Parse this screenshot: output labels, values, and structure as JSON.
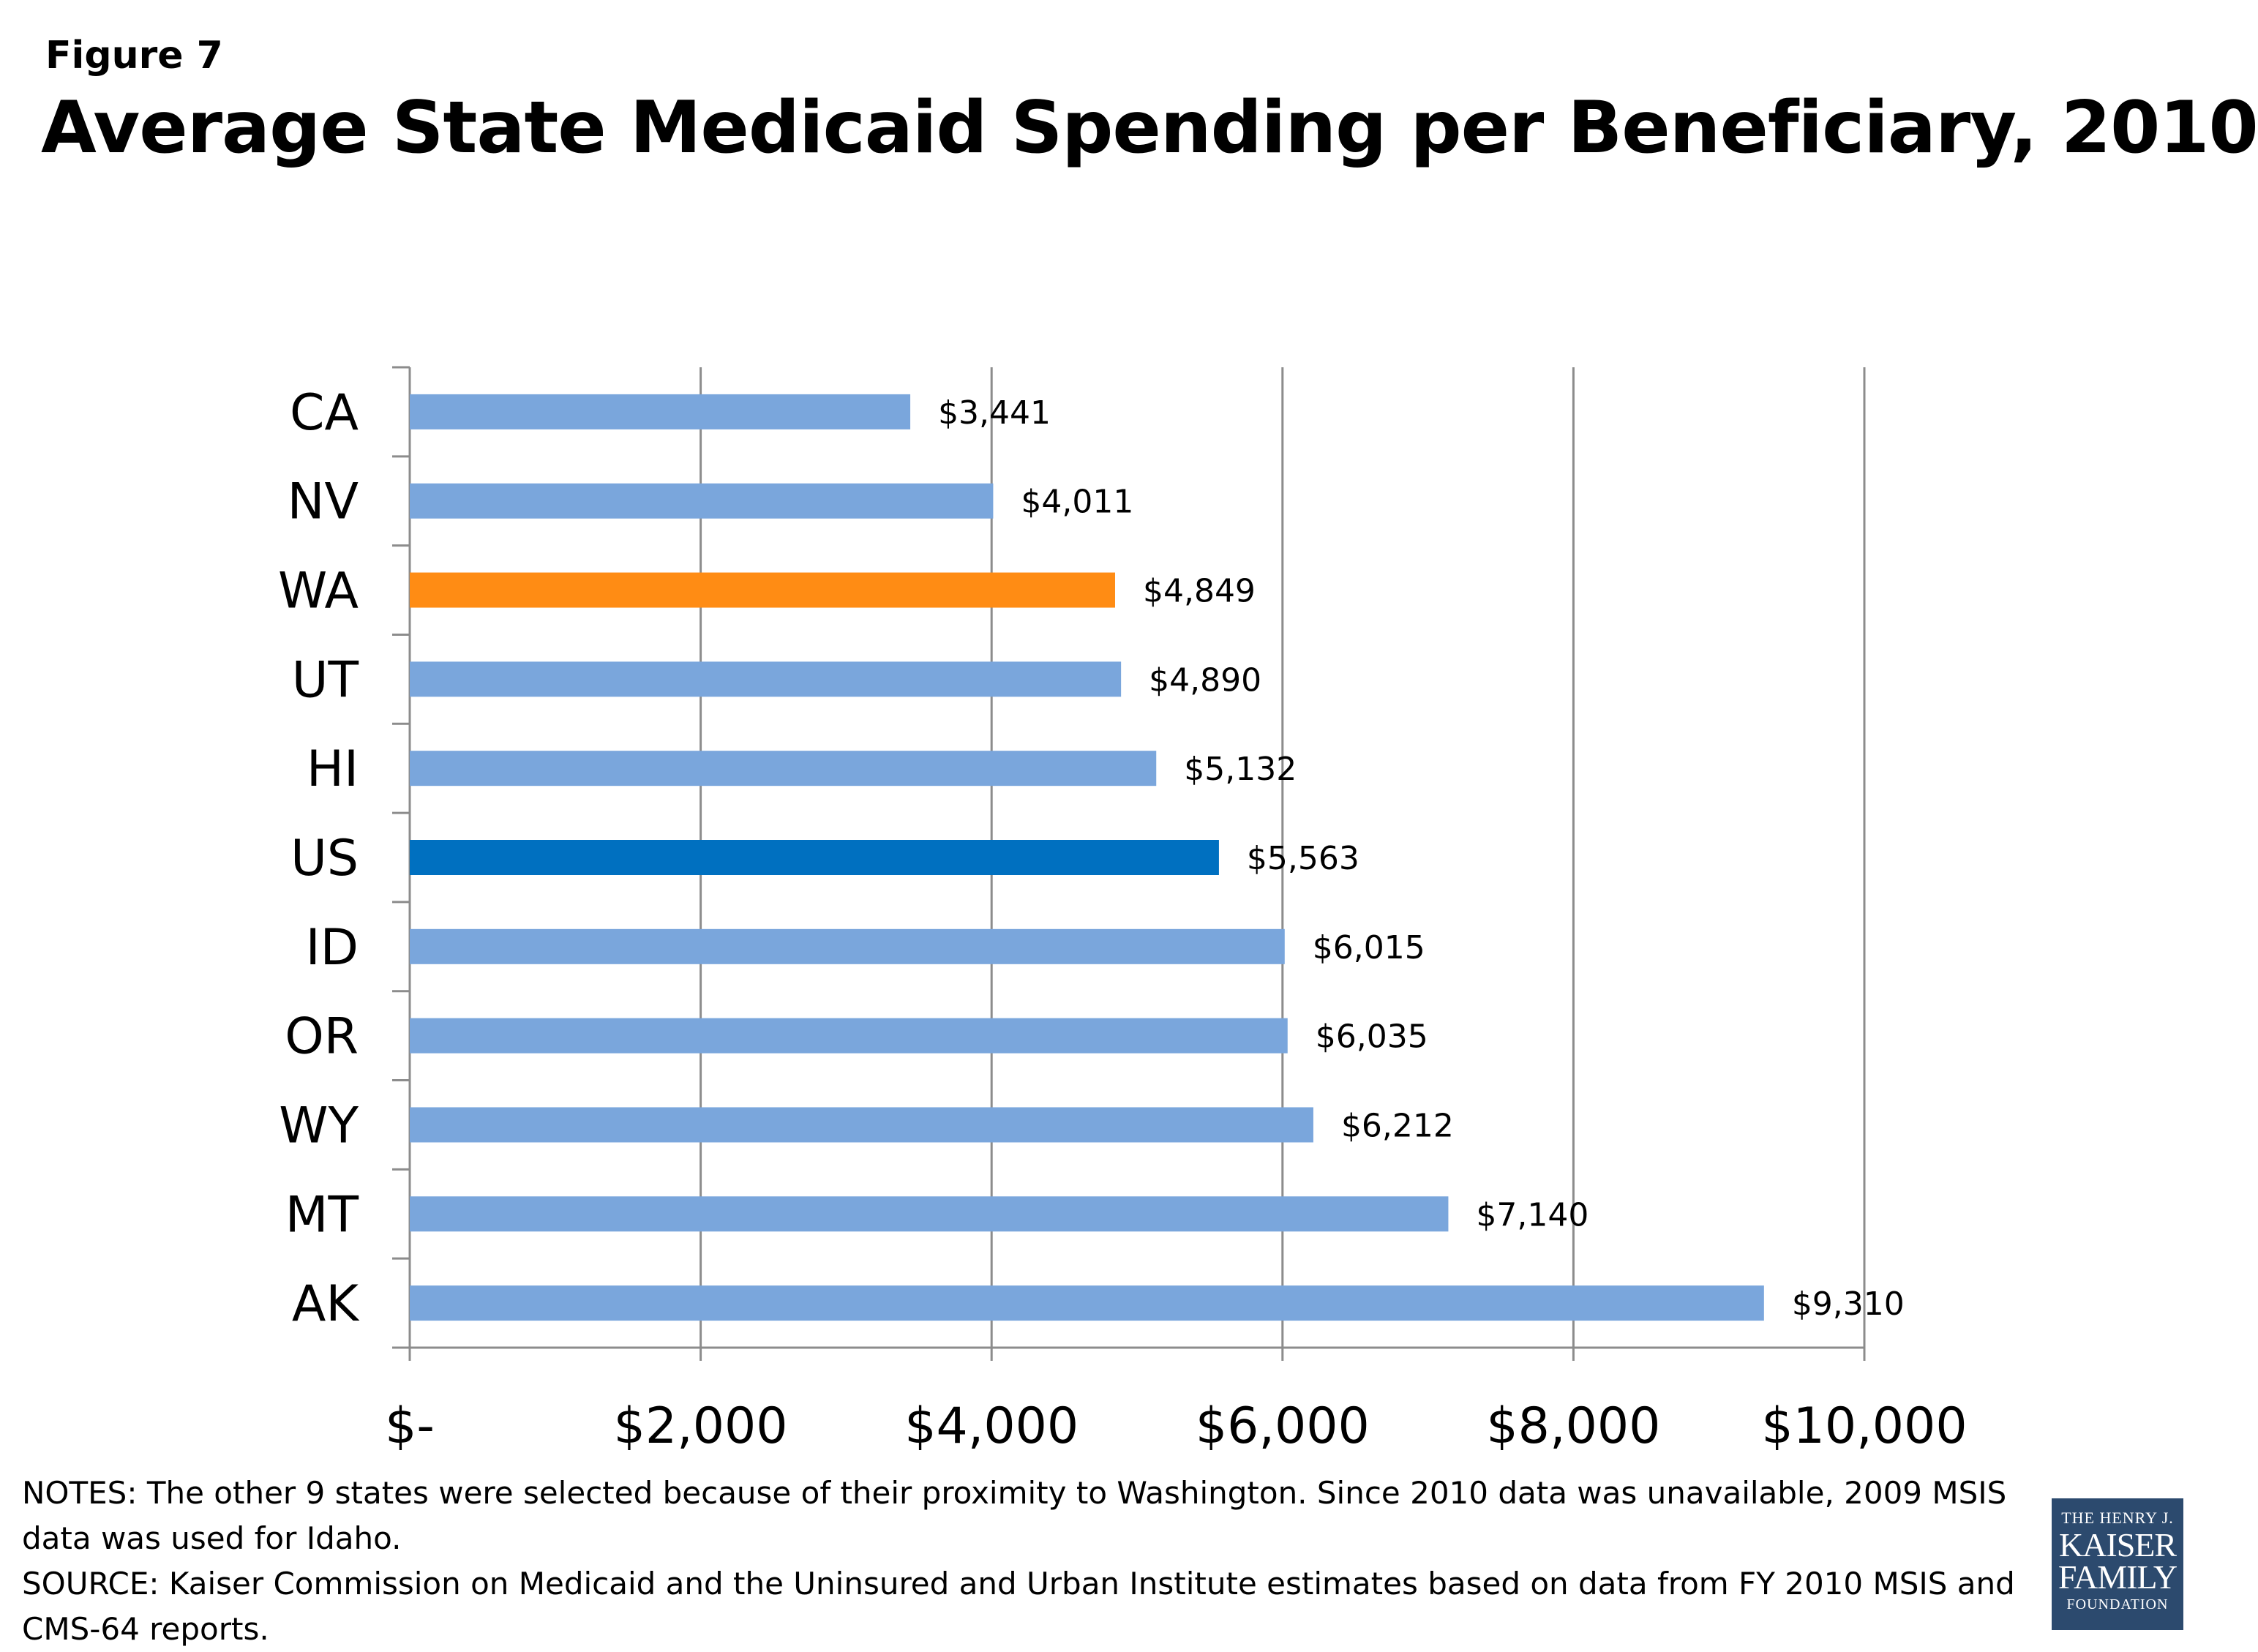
{
  "figure_label": "Figure 7",
  "title": "Average State Medicaid Spending per Beneficiary, 2010",
  "notes": "NOTES: The other 9 states were selected because of their proximity to Washington. Since 2010 data was unavailable, 2009 MSIS data was used for Idaho.",
  "source": "SOURCE: Kaiser Commission on Medicaid and the Uninsured and Urban Institute estimates based on data from FY 2010 MSIS and CMS-64 reports.",
  "logo": {
    "line1": "THE HENRY J.",
    "line2": "KAISER",
    "line3": "FAMILY",
    "line4": "FOUNDATION",
    "color": "#2c4a6e"
  },
  "chart_data": {
    "type": "bar",
    "orientation": "horizontal",
    "categories": [
      "CA",
      "NV",
      "WA",
      "UT",
      "HI",
      "US",
      "ID",
      "OR",
      "WY",
      "MT",
      "AK"
    ],
    "values": [
      3441,
      4011,
      4849,
      4890,
      5132,
      5563,
      6015,
      6035,
      6212,
      7140,
      9310
    ],
    "data_labels": [
      "$3,441",
      "$4,011",
      "$4,849",
      "$4,890",
      "$5,132",
      "$5,563",
      "$6,015",
      "$6,035",
      "$6,212",
      "$7,140",
      "$9,310"
    ],
    "bar_colors": [
      "#7aa6dc",
      "#7aa6dc",
      "#ff8c14",
      "#7aa6dc",
      "#7aa6dc",
      "#0070c0",
      "#7aa6dc",
      "#7aa6dc",
      "#7aa6dc",
      "#7aa6dc",
      "#7aa6dc"
    ],
    "x_ticks": [
      0,
      2000,
      4000,
      6000,
      8000,
      10000
    ],
    "x_tick_labels": [
      "$-",
      "$2,000",
      "$4,000",
      "$6,000",
      "$8,000",
      "$10,000"
    ],
    "xlim": [
      0,
      10000
    ],
    "grid": true,
    "legend": "none"
  }
}
